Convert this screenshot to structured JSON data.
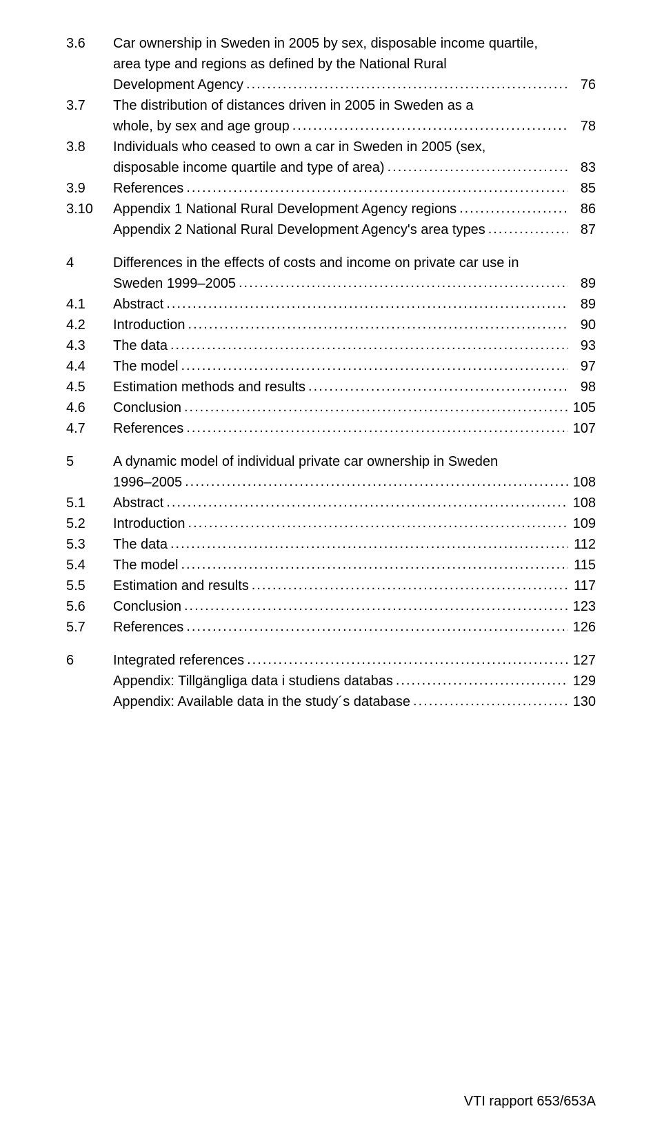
{
  "footer": "VTI rapport 653/653A",
  "leader": "....................................................................................................................................................................................................",
  "entries": [
    {
      "num": "3.6",
      "lines": [
        "Car ownership in Sweden in 2005 by sex, disposable income quartile,",
        "area type and regions as defined by the National Rural",
        "Development Agency"
      ],
      "page": "76",
      "gap": false
    },
    {
      "num": "3.7",
      "lines": [
        "The distribution of distances driven in 2005 in Sweden as a",
        "whole, by sex and age group"
      ],
      "page": "78",
      "gap": false
    },
    {
      "num": "3.8",
      "lines": [
        "Individuals who ceased to own a car in Sweden in 2005 (sex,",
        "disposable income quartile and type of area)"
      ],
      "page": "83",
      "gap": false
    },
    {
      "num": "3.9",
      "lines": [
        "References"
      ],
      "page": "85",
      "gap": false
    },
    {
      "num": "3.10",
      "lines": [
        "Appendix 1 National Rural Development Agency regions"
      ],
      "page": "86",
      "gap": false
    },
    {
      "num": "",
      "lines": [
        "Appendix 2 National Rural Development Agency's area types"
      ],
      "page": "87",
      "gap": false
    },
    {
      "num": "4",
      "lines": [
        "Differences in the effects of costs and income on private car use in",
        "Sweden 1999–2005"
      ],
      "page": "89",
      "gap": true
    },
    {
      "num": "4.1",
      "lines": [
        "Abstract"
      ],
      "page": "89",
      "gap": false
    },
    {
      "num": "4.2",
      "lines": [
        "Introduction"
      ],
      "page": "90",
      "gap": false
    },
    {
      "num": "4.3",
      "lines": [
        "The data"
      ],
      "page": "93",
      "gap": false
    },
    {
      "num": "4.4",
      "lines": [
        "The model"
      ],
      "page": "97",
      "gap": false
    },
    {
      "num": "4.5",
      "lines": [
        "Estimation methods and results"
      ],
      "page": "98",
      "gap": false
    },
    {
      "num": "4.6",
      "lines": [
        "Conclusion"
      ],
      "page": "105",
      "gap": false
    },
    {
      "num": "4.7",
      "lines": [
        "References"
      ],
      "page": "107",
      "gap": false
    },
    {
      "num": "5",
      "lines": [
        "A dynamic model of individual private car ownership in Sweden",
        "1996–2005"
      ],
      "page": "108",
      "gap": true
    },
    {
      "num": "5.1",
      "lines": [
        "Abstract"
      ],
      "page": "108",
      "gap": false
    },
    {
      "num": "5.2",
      "lines": [
        "Introduction"
      ],
      "page": "109",
      "gap": false
    },
    {
      "num": "5.3",
      "lines": [
        "The data"
      ],
      "page": "112",
      "gap": false
    },
    {
      "num": "5.4",
      "lines": [
        "The model"
      ],
      "page": "115",
      "gap": false
    },
    {
      "num": "5.5",
      "lines": [
        "Estimation and results"
      ],
      "page": "117",
      "gap": false
    },
    {
      "num": "5.6",
      "lines": [
        "Conclusion"
      ],
      "page": "123",
      "gap": false
    },
    {
      "num": "5.7",
      "lines": [
        "References"
      ],
      "page": "126",
      "gap": false
    },
    {
      "num": "6",
      "lines": [
        "Integrated references"
      ],
      "page": "127",
      "gap": true
    },
    {
      "num": "",
      "lines": [
        "Appendix: Tillgängliga data i studiens databas"
      ],
      "page": "129",
      "gap": false
    },
    {
      "num": "",
      "lines": [
        "Appendix: Available data in the study´s database"
      ],
      "page": "130",
      "gap": false
    }
  ]
}
